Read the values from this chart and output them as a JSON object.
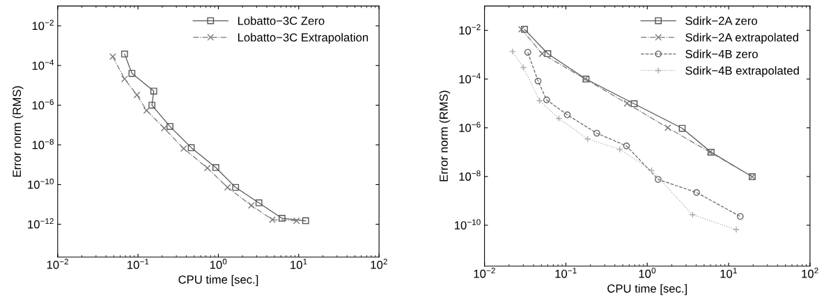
{
  "chart_data": [
    {
      "type": "line",
      "xlabel": "CPU time [sec.]",
      "ylabel": "Error norm (RMS)",
      "log": "xy",
      "grid": false,
      "legend": "top right",
      "xlim": [
        0.01,
        100
      ],
      "ylim": [
        2.2e-14,
        0.1
      ],
      "xticks": [
        {
          "value": 0.01,
          "label": "10$^{−2}$"
        },
        {
          "value": 0.1,
          "label": "10$^{−1}$"
        },
        {
          "value": 1,
          "label": "10$^{0}$"
        },
        {
          "value": 10,
          "label": "10$^{1}$"
        },
        {
          "value": 100,
          "label": "10$^{2}$"
        }
      ],
      "yticks": [
        {
          "value": 0.01,
          "label": "10$^{−2}$"
        },
        {
          "value": 0.0001,
          "label": "10$^{−4}$"
        },
        {
          "value": 1e-06,
          "label": "10$^{−6}$"
        },
        {
          "value": 1e-08,
          "label": "10$^{−8}$"
        },
        {
          "value": 1e-10,
          "label": "10$^{−10}$"
        },
        {
          "value": 1e-12,
          "label": "10$^{−12}$"
        }
      ],
      "series": [
        {
          "name": "Lobatto−3C Zero",
          "color": "#555555",
          "marker": "square",
          "line_style": "solid",
          "x": [
            0.068,
            0.084,
            0.157,
            0.149,
            0.25,
            0.46,
            0.93,
            1.64,
            3.2,
            6.2,
            12.2
          ],
          "values": [
            0.00038,
            4e-05,
            5.1e-06,
            1e-06,
            8.5e-08,
            7.2e-09,
            7.2e-10,
            7.2e-11,
            1.2e-11,
            2e-12,
            1.5e-12
          ]
        },
        {
          "name": "Lobatto−3C Extrapolation",
          "color": "#777777",
          "marker": "cross",
          "line_style": "dashdot",
          "x": [
            0.0485,
            0.068,
            0.097,
            0.128,
            0.212,
            0.37,
            0.73,
            1.3,
            2.57,
            4.7,
            9.4
          ],
          "values": [
            0.00028,
            2.1e-05,
            3.3e-06,
            5.4e-07,
            6.9e-08,
            6.5e-09,
            6.8e-10,
            7.2e-11,
            8.9e-12,
            1.7e-12,
            1.5e-12
          ]
        }
      ]
    },
    {
      "type": "line",
      "xlabel": "CPU time [sec.]",
      "ylabel": "Error norm (RMS)",
      "log": "xy",
      "grid": false,
      "legend": "top right",
      "xlim": [
        0.01,
        100
      ],
      "ylim": [
        2.1e-12,
        0.1
      ],
      "xticks": [
        {
          "value": 0.01,
          "label": "10$^{−2}$"
        },
        {
          "value": 0.1,
          "label": "10$^{−1}$"
        },
        {
          "value": 1,
          "label": "10$^{0}$"
        },
        {
          "value": 10,
          "label": "10$^{1}$"
        },
        {
          "value": 100,
          "label": "10$^{2}$"
        }
      ],
      "yticks": [
        {
          "value": 0.01,
          "label": "10$^{−2}$"
        },
        {
          "value": 0.0001,
          "label": "10$^{−4}$"
        },
        {
          "value": 1e-06,
          "label": "10$^{−6}$"
        },
        {
          "value": 1e-08,
          "label": "10$^{−8}$"
        },
        {
          "value": 1e-10,
          "label": "10$^{−10}$"
        }
      ],
      "series": [
        {
          "name": "Sdirk−2A zero",
          "color": "#555555",
          "marker": "square",
          "line_style": "solid",
          "x": [
            0.031,
            0.06,
            0.177,
            0.69,
            2.69,
            6.1,
            19.5
          ],
          "values": [
            0.011,
            0.0011,
            0.0001,
            9.7e-06,
            9.5e-07,
            1e-07,
            9.8e-09
          ]
        },
        {
          "name": "Sdirk−2A extrapolated",
          "color": "#777777",
          "marker": "cross",
          "line_style": "dashdot",
          "x": [
            0.0285,
            0.051,
            0.173,
            0.565,
            1.79,
            5.9,
            19.5
          ],
          "values": [
            0.011,
            0.0011,
            0.0001,
            1e-05,
            1e-06,
            1e-07,
            9.8e-09
          ]
        },
        {
          "name": "Sdirk−4B zero",
          "color": "#666666",
          "marker": "circle",
          "line_style": "dashed",
          "x": [
            0.034,
            0.0455,
            0.058,
            0.104,
            0.24,
            0.556,
            1.36,
            4.04,
            13.9
          ],
          "values": [
            0.00125,
            8.3e-05,
            1.4e-05,
            3.4e-06,
            6e-07,
            1.8e-07,
            7.6e-09,
            2.2e-09,
            2.3e-10
          ]
        },
        {
          "name": "Sdirk−4B extrapolated",
          "color": "#aaaaaa",
          "marker": "plus",
          "line_style": "dotted",
          "x": [
            0.0221,
            0.03,
            0.0475,
            0.082,
            0.185,
            0.46,
            1.13,
            3.6,
            12.4
          ],
          "values": [
            0.00135,
            0.0003,
            1.3e-05,
            2.4e-06,
            3.5e-07,
            1.3e-07,
            1.8e-08,
            2.7e-10,
            6.6e-11
          ]
        }
      ]
    }
  ]
}
